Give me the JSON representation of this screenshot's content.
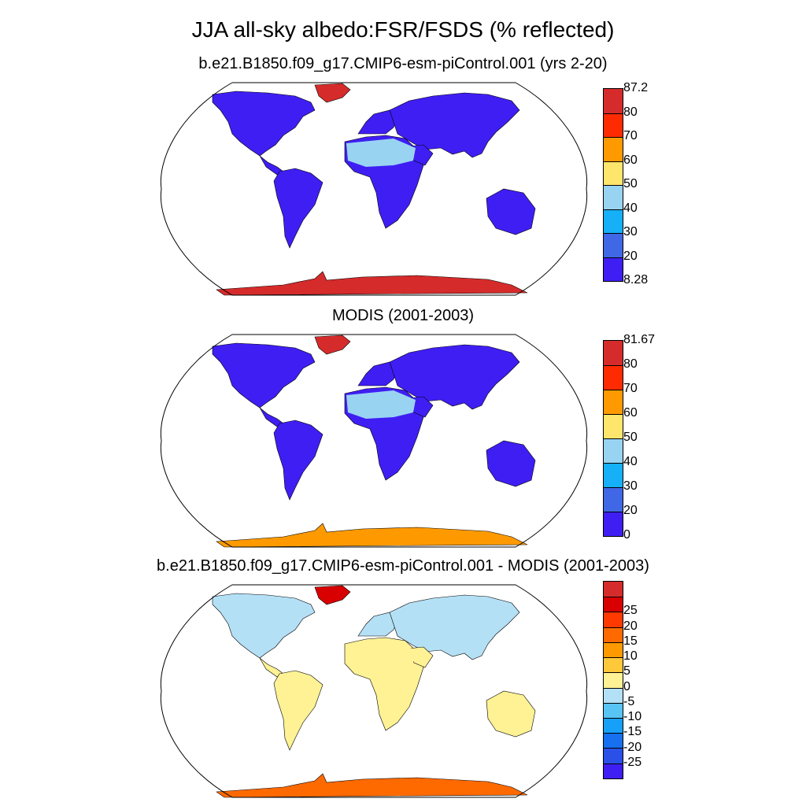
{
  "title": "JJA all-sky albedo:FSR/FSDS (% reflected)",
  "panels": [
    {
      "title": "b.e21.B1850.f09_g17.CMIP6-esm-piControl.001 (yrs 2-20)",
      "colorbar": {
        "colors": [
          "#3f1ef4",
          "#3f67e6",
          "#16b0f8",
          "#99d3f2",
          "#fde66b",
          "#fe9a00",
          "#fe2b00",
          "#d62b2b"
        ],
        "labels": [
          "8.28",
          "20",
          "30",
          "40",
          "50",
          "60",
          "70",
          "80",
          "87.2"
        ]
      }
    },
    {
      "title": "MODIS (2001-2003)",
      "colorbar": {
        "colors": [
          "#3f1ef4",
          "#3f67e6",
          "#16b0f8",
          "#99d3f2",
          "#fde66b",
          "#fe9a00",
          "#fe2b00",
          "#d62b2b"
        ],
        "labels": [
          "0",
          "20",
          "30",
          "40",
          "50",
          "60",
          "70",
          "80",
          "81.67"
        ]
      }
    },
    {
      "title": "b.e21.B1850.f09_g17.CMIP6-esm-piControl.001 - MODIS (2001-2003)",
      "colorbar": {
        "colors": [
          "#3f1ef4",
          "#2a50e8",
          "#1670f0",
          "#16a0f8",
          "#58c4f4",
          "#b4e0f6",
          "#fef294",
          "#fdc83a",
          "#fe9a00",
          "#fe6a00",
          "#fe3a00",
          "#d80000",
          "#d62b2b"
        ],
        "labels": [
          "-25",
          "-20",
          "-15",
          "-10",
          "-5",
          "0",
          "5",
          "10",
          "15",
          "20",
          "25"
        ]
      }
    }
  ]
}
